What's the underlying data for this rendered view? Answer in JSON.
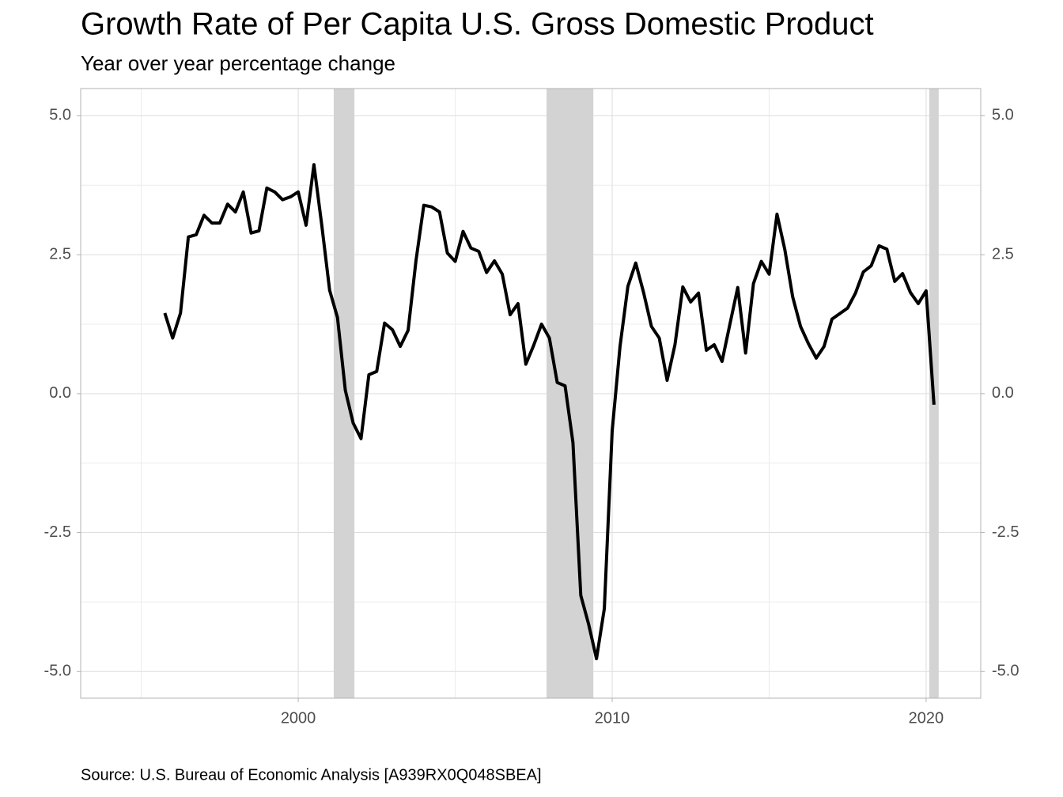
{
  "chart_data": {
    "type": "line",
    "title": "Growth Rate of Per Capita U.S. Gross Domestic Product",
    "subtitle": "Year over year percentage change",
    "source": "Source: U.S. Bureau of Economic Analysis [A939RX0Q048SBEA]",
    "x": [
      1995.75,
      1996,
      1996.25,
      1996.5,
      1996.75,
      1997,
      1997.25,
      1997.5,
      1997.75,
      1998,
      1998.25,
      1998.5,
      1998.75,
      1999,
      1999.25,
      1999.5,
      1999.75,
      2000,
      2000.25,
      2000.5,
      2000.75,
      2001,
      2001.25,
      2001.5,
      2001.75,
      2002,
      2002.25,
      2002.5,
      2002.75,
      2003,
      2003.25,
      2003.5,
      2003.75,
      2004,
      2004.25,
      2004.5,
      2004.75,
      2005,
      2005.25,
      2005.5,
      2005.75,
      2006,
      2006.25,
      2006.5,
      2006.75,
      2007,
      2007.25,
      2007.5,
      2007.75,
      2008,
      2008.25,
      2008.5,
      2008.75,
      2009,
      2009.25,
      2009.5,
      2009.75,
      2010,
      2010.25,
      2010.5,
      2010.75,
      2011,
      2011.25,
      2011.5,
      2011.75,
      2012,
      2012.25,
      2012.5,
      2012.75,
      2013,
      2013.25,
      2013.5,
      2013.75,
      2014,
      2014.25,
      2014.5,
      2014.75,
      2015,
      2015.25,
      2015.5,
      2015.75,
      2016,
      2016.25,
      2016.5,
      2016.75,
      2017,
      2017.25,
      2017.5,
      2017.75,
      2018,
      2018.25,
      2018.5,
      2018.75,
      2019,
      2019.25,
      2019.5,
      2019.75,
      2020,
      2020.25
    ],
    "values": [
      1.45,
      1.0,
      1.45,
      2.82,
      2.86,
      3.21,
      3.07,
      3.07,
      3.41,
      3.27,
      3.63,
      2.89,
      2.93,
      3.7,
      3.63,
      3.49,
      3.54,
      3.63,
      3.03,
      4.12,
      3.03,
      1.86,
      1.37,
      0.06,
      -0.53,
      -0.81,
      0.34,
      0.4,
      1.27,
      1.15,
      0.85,
      1.14,
      2.39,
      3.39,
      3.36,
      3.27,
      2.53,
      2.38,
      2.92,
      2.62,
      2.56,
      2.18,
      2.39,
      2.15,
      1.42,
      1.62,
      0.53,
      0.87,
      1.25,
      1.0,
      0.2,
      0.14,
      -0.88,
      -3.63,
      -4.15,
      -4.77,
      -3.87,
      -0.67,
      0.85,
      1.93,
      2.35,
      1.82,
      1.21,
      1.0,
      0.24,
      0.88,
      1.92,
      1.65,
      1.81,
      0.78,
      0.88,
      0.58,
      1.25,
      1.91,
      0.73,
      1.98,
      2.38,
      2.15,
      3.23,
      2.59,
      1.74,
      1.21,
      0.9,
      0.64,
      0.85,
      1.34,
      1.44,
      1.54,
      1.81,
      2.19,
      2.3,
      2.66,
      2.6,
      2.02,
      2.16,
      1.82,
      1.62,
      1.85,
      -0.2
    ],
    "color": "#000000",
    "shaded_ranges": [
      [
        2001.13,
        2001.79
      ],
      [
        2007.91,
        2009.4
      ],
      [
        2020.1,
        2020.4
      ]
    ],
    "shade_color": "#d3d3d3",
    "xlim": [
      1993.07,
      2021.74
    ],
    "xticks": [
      2000,
      2010,
      2020
    ],
    "ylim": [
      -5.48,
      5.49
    ],
    "yticks": [
      {
        "value": -5,
        "label": "-5.0"
      },
      {
        "value": -2.5,
        "label": "-2.5"
      },
      {
        "value": 0,
        "label": "0.0"
      },
      {
        "value": 2.5,
        "label": "2.5"
      },
      {
        "value": 5,
        "label": "5.0"
      }
    ],
    "y2lim": [
      -5.48,
      5.49
    ],
    "y2ticks": [
      {
        "value": -5,
        "label": "-5.0"
      },
      {
        "value": -2.5,
        "label": "-2.5"
      },
      {
        "value": 0,
        "label": "0.0"
      },
      {
        "value": 2.5,
        "label": "2.5"
      },
      {
        "value": 5,
        "label": "5.0"
      }
    ],
    "grid": true
  }
}
